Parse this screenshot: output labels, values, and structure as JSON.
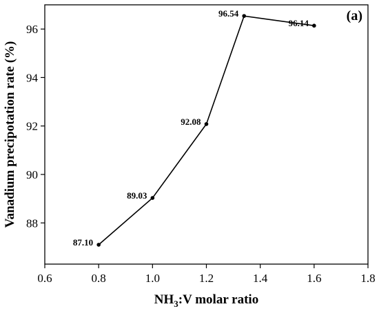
{
  "chart_data": {
    "type": "line",
    "panel_label": "(a)",
    "xlabel_prefix": "NH",
    "xlabel_sub": "3",
    "xlabel_suffix": ":V molar ratio",
    "ylabel": "Vanadium precipotation rate (%)",
    "xlim": [
      0.6,
      1.8
    ],
    "ylim": [
      86.3,
      97.0
    ],
    "xticks": [
      0.6,
      0.8,
      1.0,
      1.2,
      1.4,
      1.6,
      1.8
    ],
    "xtick_labels": [
      "0.6",
      "0.8",
      "1.0",
      "1.2",
      "1.4",
      "1.6",
      "1.8"
    ],
    "yticks": [
      88,
      90,
      92,
      94,
      96
    ],
    "ytick_labels": [
      "88",
      "90",
      "92",
      "94",
      "96"
    ],
    "grid": false,
    "series": [
      {
        "x": [
          0.8,
          1.0,
          1.2,
          1.34,
          1.6
        ],
        "y": [
          87.1,
          89.03,
          92.08,
          96.54,
          96.14
        ],
        "labels": [
          "87.10",
          "89.03",
          "92.08",
          "96.54",
          "96.14"
        ],
        "color": "#000000",
        "marker": "circle"
      }
    ]
  }
}
